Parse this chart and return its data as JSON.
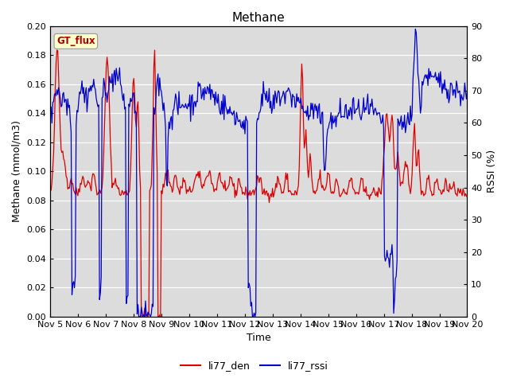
{
  "title": "Methane",
  "xlabel": "Time",
  "ylabel_left": "Methane (mmol/m3)",
  "ylabel_right": "RSSI (%)",
  "ylim_left": [
    0.0,
    0.2
  ],
  "ylim_right": [
    0,
    90
  ],
  "yticks_left": [
    0.0,
    0.02,
    0.04,
    0.06,
    0.08,
    0.1,
    0.12,
    0.14,
    0.16,
    0.18,
    0.2
  ],
  "yticks_right": [
    0,
    10,
    20,
    30,
    40,
    50,
    60,
    70,
    80,
    90
  ],
  "xtick_labels": [
    "Nov 5",
    "Nov 6",
    "Nov 7",
    "Nov 8",
    "Nov 9",
    "Nov 10",
    "Nov 11",
    "Nov 12",
    "Nov 13",
    "Nov 14",
    "Nov 15",
    "Nov 16",
    "Nov 17",
    "Nov 18",
    "Nov 19",
    "Nov 20"
  ],
  "color_red": "#DD0000",
  "color_blue": "#0000CC",
  "legend_label_red": "li77_den",
  "legend_label_blue": "li77_rssi",
  "annotation_text": "GT_flux",
  "annotation_color": "#AA0000",
  "annotation_bg": "#FFFFCC",
  "background_color": "#DCDCDC",
  "title_fontsize": 11,
  "axis_fontsize": 9,
  "tick_fontsize": 8,
  "n_days": 15,
  "n_pts": 500
}
